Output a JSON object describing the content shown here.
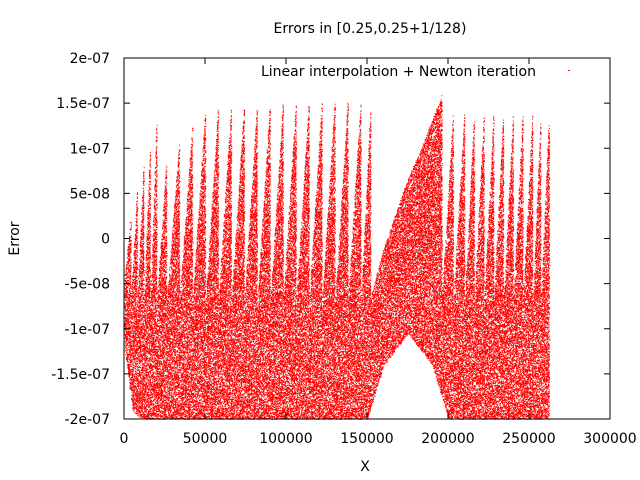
{
  "chart_data": {
    "type": "scatter",
    "title": "Errors in [0.25,0.25+1/128)",
    "xlabel": "X",
    "ylabel": "Error",
    "xlim": [
      0,
      300000
    ],
    "ylim": [
      -2e-07,
      2e-07
    ],
    "x_ticks": [
      {
        "value": 0,
        "label": "0"
      },
      {
        "value": 50000,
        "label": "50000"
      },
      {
        "value": 100000,
        "label": "100000"
      },
      {
        "value": 150000,
        "label": "150000"
      },
      {
        "value": 200000,
        "label": "200000"
      },
      {
        "value": 250000,
        "label": "250000"
      },
      {
        "value": 300000,
        "label": "300000"
      }
    ],
    "y_ticks": [
      {
        "value": -2e-07,
        "label": "-2e-07"
      },
      {
        "value": -1.5e-07,
        "label": "-1.5e-07"
      },
      {
        "value": -1e-07,
        "label": "-1e-07"
      },
      {
        "value": -5e-08,
        "label": "-5e-08"
      },
      {
        "value": 0,
        "label": "0"
      },
      {
        "value": 5e-08,
        "label": "5e-08"
      },
      {
        "value": 1e-07,
        "label": "1e-07"
      },
      {
        "value": 1.5e-07,
        "label": "1.5e-07"
      },
      {
        "value": 2e-07,
        "label": "2e-07"
      }
    ],
    "grid": false,
    "legend_position": "top-right",
    "series": [
      {
        "name": "Linear interpolation + Newton iteration",
        "color": "#ff0000",
        "marker": "dot",
        "x_range": [
          0,
          262144
        ],
        "lobes": [
          {
            "x_start": 0,
            "x_end": 4000,
            "y_max": 3e-08
          },
          {
            "x_start": 4000,
            "x_end": 8000,
            "y_max": 6e-08
          },
          {
            "x_start": 8000,
            "x_end": 12000,
            "y_max": 9e-08
          },
          {
            "x_start": 12000,
            "x_end": 16000,
            "y_max": 1.1e-07
          },
          {
            "x_start": 16000,
            "x_end": 20000,
            "y_max": 1.4e-07
          },
          {
            "x_start": 20000,
            "x_end": 26000,
            "y_max": 9e-08
          },
          {
            "x_start": 26000,
            "x_end": 34000,
            "y_max": 1.1e-07
          },
          {
            "x_start": 34000,
            "x_end": 42000,
            "y_max": 1.3e-07
          },
          {
            "x_start": 42000,
            "x_end": 50000,
            "y_max": 1.45e-07
          },
          {
            "x_start": 50000,
            "x_end": 58000,
            "y_max": 1.5e-07
          },
          {
            "x_start": 58000,
            "x_end": 66000,
            "y_max": 1.52e-07
          },
          {
            "x_start": 66000,
            "x_end": 74000,
            "y_max": 1.53e-07
          },
          {
            "x_start": 74000,
            "x_end": 82000,
            "y_max": 1.55e-07
          },
          {
            "x_start": 82000,
            "x_end": 90000,
            "y_max": 1.55e-07
          },
          {
            "x_start": 90000,
            "x_end": 98000,
            "y_max": 1.56e-07
          },
          {
            "x_start": 98000,
            "x_end": 106000,
            "y_max": 1.57e-07
          },
          {
            "x_start": 106000,
            "x_end": 114000,
            "y_max": 1.57e-07
          },
          {
            "x_start": 114000,
            "x_end": 122000,
            "y_max": 1.58e-07
          },
          {
            "x_start": 122000,
            "x_end": 130000,
            "y_max": 1.58e-07
          },
          {
            "x_start": 130000,
            "x_end": 138000,
            "y_max": 1.58e-07
          },
          {
            "x_start": 138000,
            "x_end": 146000,
            "y_max": 1.58e-07
          },
          {
            "x_start": 146000,
            "x_end": 152000,
            "y_max": 1.5e-07
          },
          {
            "x_start": 152000,
            "x_end": 196000,
            "y_max": 1.6e-07
          },
          {
            "x_start": 196000,
            "x_end": 203000,
            "y_max": 1.45e-07
          },
          {
            "x_start": 203000,
            "x_end": 210000,
            "y_max": 1.45e-07
          },
          {
            "x_start": 210000,
            "x_end": 216000,
            "y_max": 1.45e-07
          },
          {
            "x_start": 216000,
            "x_end": 222000,
            "y_max": 1.45e-07
          },
          {
            "x_start": 222000,
            "x_end": 228000,
            "y_max": 1.45e-07
          },
          {
            "x_start": 228000,
            "x_end": 234000,
            "y_max": 1.45e-07
          },
          {
            "x_start": 234000,
            "x_end": 240000,
            "y_max": 1.45e-07
          },
          {
            "x_start": 240000,
            "x_end": 246000,
            "y_max": 1.45e-07
          },
          {
            "x_start": 246000,
            "x_end": 252000,
            "y_max": 1.45e-07
          },
          {
            "x_start": 252000,
            "x_end": 257000,
            "y_max": 1.4e-07
          },
          {
            "x_start": 257000,
            "x_end": 262144,
            "y_max": 1.4e-07
          }
        ],
        "lower_envelope": [
          {
            "x": 0,
            "y": -1.2e-07
          },
          {
            "x": 5000,
            "y": -1.9e-07
          },
          {
            "x": 10000,
            "y": -2e-07
          },
          {
            "x": 20000,
            "y": -2e-07
          },
          {
            "x": 150000,
            "y": -2e-07
          },
          {
            "x": 160000,
            "y": -1.4e-07
          },
          {
            "x": 175000,
            "y": -1.05e-07
          },
          {
            "x": 190000,
            "y": -1.4e-07
          },
          {
            "x": 200000,
            "y": -2e-07
          },
          {
            "x": 262144,
            "y": -2e-07
          }
        ]
      }
    ]
  }
}
